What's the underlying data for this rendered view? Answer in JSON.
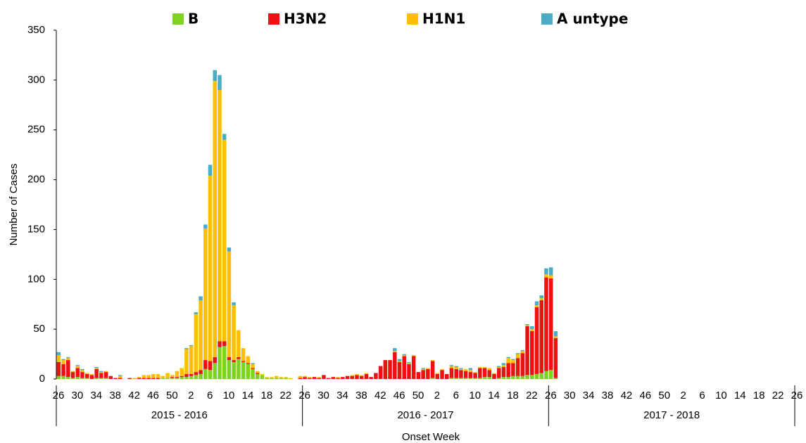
{
  "chart_data": {
    "type": "stacked-bar",
    "y_label": "Number of Cases",
    "x_label": "Onset Week",
    "ylim": [
      0,
      350
    ],
    "yticks": [
      0,
      50,
      100,
      150,
      200,
      250,
      300,
      350
    ],
    "groups": [
      "2015 - 2016",
      "2016 - 2017",
      "2017 - 2018"
    ],
    "categories": [
      "26",
      null,
      null,
      null,
      "30",
      null,
      null,
      null,
      "34",
      null,
      null,
      null,
      "38",
      null,
      null,
      null,
      "42",
      null,
      null,
      null,
      "46",
      null,
      null,
      null,
      "50",
      null,
      null,
      null,
      "2",
      null,
      null,
      null,
      "6",
      null,
      null,
      null,
      "10",
      null,
      null,
      null,
      "14",
      null,
      null,
      null,
      "18",
      null,
      null,
      null,
      "22",
      null,
      null,
      null,
      "26",
      null,
      null,
      null,
      "30",
      null,
      null,
      null,
      "34",
      null,
      null,
      null,
      "38",
      null,
      null,
      null,
      "42",
      null,
      null,
      null,
      "46",
      null,
      null,
      null,
      "50",
      null,
      null,
      null,
      "2",
      null,
      null,
      null,
      "6",
      null,
      null,
      null,
      "10",
      null,
      null,
      null,
      "14",
      null,
      null,
      null,
      "18",
      null,
      null,
      null,
      "22",
      null,
      null,
      null,
      "26",
      null,
      null,
      null,
      "30",
      null,
      null,
      null,
      "34",
      null,
      null,
      null,
      "38",
      null,
      null,
      null,
      "42",
      null,
      null,
      null,
      "46",
      null,
      null,
      null,
      "50",
      null,
      null,
      null,
      "2",
      null,
      null,
      null,
      "6",
      null,
      null,
      null,
      "10",
      null,
      null,
      null,
      "14",
      null,
      null,
      null,
      "18",
      null,
      null,
      null,
      "22",
      null,
      null,
      null,
      "26"
    ],
    "series": [
      {
        "name": "B",
        "color": "#7ed321",
        "values": [
          3,
          3,
          2,
          1,
          2,
          1,
          1,
          0,
          1,
          1,
          1,
          0,
          0,
          0,
          0,
          0,
          0,
          0,
          0,
          0,
          0,
          0,
          1,
          1,
          1,
          1,
          2,
          2,
          3,
          4,
          5,
          10,
          9,
          16,
          32,
          33,
          19,
          17,
          20,
          17,
          15,
          10,
          5,
          4,
          1,
          1,
          1,
          1,
          1,
          0,
          0,
          0,
          0,
          0,
          0,
          0,
          0,
          0,
          0,
          0,
          0,
          0,
          0,
          0,
          0,
          0,
          0,
          0,
          0,
          0,
          0,
          0,
          0,
          0,
          0,
          0,
          0,
          0,
          0,
          1,
          0,
          0,
          0,
          1,
          1,
          1,
          1,
          1,
          1,
          1,
          2,
          2,
          0,
          1,
          2,
          2,
          3,
          3,
          3,
          4,
          4,
          5,
          6,
          8,
          9,
          1,
          null,
          null,
          null,
          null,
          null,
          null,
          null,
          null,
          null,
          null,
          null,
          null,
          null,
          null,
          null,
          null,
          null,
          null,
          null,
          null,
          null,
          null,
          null,
          null,
          null,
          null,
          null,
          null,
          null,
          null,
          null,
          null,
          null,
          null,
          null,
          null,
          null,
          null,
          null,
          null,
          null,
          null,
          null,
          null,
          null,
          null,
          null,
          null,
          null,
          null,
          null
        ]
      },
      {
        "name": "H3N2",
        "color": "#ee1111",
        "values": [
          14,
          12,
          17,
          6,
          9,
          6,
          4,
          4,
          9,
          5,
          6,
          3,
          1,
          1,
          0,
          1,
          0,
          1,
          1,
          1,
          1,
          1,
          0,
          0,
          1,
          1,
          1,
          3,
          2,
          3,
          4,
          9,
          9,
          6,
          6,
          5,
          3,
          2,
          2,
          1,
          1,
          1,
          1,
          0,
          0,
          0,
          0,
          0,
          0,
          0,
          0,
          1,
          2,
          1,
          2,
          1,
          4,
          1,
          2,
          1,
          2,
          3,
          3,
          4,
          3,
          5,
          2,
          6,
          13,
          19,
          19,
          27,
          17,
          23,
          15,
          23,
          7,
          9,
          10,
          17,
          5,
          9,
          5,
          10,
          9,
          8,
          7,
          6,
          5,
          10,
          9,
          7,
          5,
          10,
          10,
          14,
          13,
          18,
          23,
          49,
          44,
          67,
          73,
          94,
          92,
          40,
          null,
          null,
          null,
          null,
          null,
          null,
          null,
          null,
          null,
          null,
          null,
          null,
          null,
          null,
          null,
          null,
          null,
          null,
          null,
          null,
          null,
          null,
          null,
          null,
          null,
          null,
          null,
          null,
          null,
          null,
          null,
          null,
          null,
          null,
          null,
          null,
          null,
          null,
          null,
          null,
          null,
          null,
          null,
          null,
          null,
          null,
          null,
          null,
          null,
          null,
          null
        ]
      },
      {
        "name": "H1N1",
        "color": "#fdbf00",
        "values": [
          7,
          4,
          2,
          1,
          2,
          2,
          1,
          1,
          1,
          1,
          1,
          0,
          0,
          2,
          0,
          0,
          1,
          1,
          3,
          3,
          4,
          4,
          2,
          5,
          2,
          6,
          8,
          25,
          28,
          58,
          70,
          132,
          186,
          277,
          252,
          202,
          106,
          55,
          27,
          13,
          7,
          4,
          2,
          1,
          1,
          1,
          2,
          1,
          1,
          1,
          0,
          2,
          1,
          1,
          0,
          1,
          0,
          0,
          0,
          1,
          0,
          0,
          1,
          1,
          1,
          1,
          0,
          0,
          0,
          0,
          0,
          1,
          1,
          1,
          1,
          1,
          0,
          1,
          1,
          1,
          1,
          1,
          0,
          2,
          2,
          1,
          2,
          2,
          1,
          1,
          1,
          2,
          1,
          1,
          2,
          5,
          3,
          4,
          2,
          1,
          2,
          2,
          2,
          3,
          3,
          2,
          null,
          null,
          null,
          null,
          null,
          null,
          null,
          null,
          null,
          null,
          null,
          null,
          null,
          null,
          null,
          null,
          null,
          null,
          null,
          null,
          null,
          null,
          null,
          null,
          null,
          null,
          null,
          null,
          null,
          null,
          null,
          null,
          null,
          null,
          null,
          null,
          null,
          null,
          null,
          null,
          null,
          null,
          null,
          null,
          null,
          null,
          null,
          null,
          null,
          null,
          null
        ]
      },
      {
        "name": "A untype",
        "color": "#4bacc6",
        "values": [
          3,
          1,
          1,
          0,
          1,
          1,
          0,
          0,
          1,
          1,
          0,
          0,
          0,
          1,
          0,
          0,
          0,
          0,
          0,
          0,
          0,
          0,
          0,
          0,
          0,
          0,
          0,
          1,
          1,
          2,
          4,
          4,
          11,
          11,
          15,
          6,
          4,
          3,
          0,
          0,
          0,
          1,
          0,
          0,
          0,
          0,
          0,
          0,
          0,
          0,
          0,
          0,
          0,
          0,
          0,
          0,
          0,
          0,
          0,
          0,
          0,
          0,
          0,
          0,
          0,
          0,
          0,
          0,
          0,
          0,
          0,
          3,
          2,
          1,
          1,
          0,
          0,
          1,
          0,
          0,
          0,
          0,
          0,
          1,
          1,
          1,
          0,
          2,
          0,
          0,
          0,
          0,
          0,
          1,
          2,
          1,
          1,
          1,
          1,
          1,
          3,
          4,
          3,
          6,
          8,
          5,
          null,
          null,
          null,
          null,
          null,
          null,
          null,
          null,
          null,
          null,
          null,
          null,
          null,
          null,
          null,
          null,
          null,
          null,
          null,
          null,
          null,
          null,
          null,
          null,
          null,
          null,
          null,
          null,
          null,
          null,
          null,
          null,
          null,
          null,
          null,
          null,
          null,
          null,
          null,
          null,
          null,
          null,
          null,
          null,
          null,
          null,
          null,
          null,
          null,
          null,
          null
        ]
      }
    ]
  }
}
